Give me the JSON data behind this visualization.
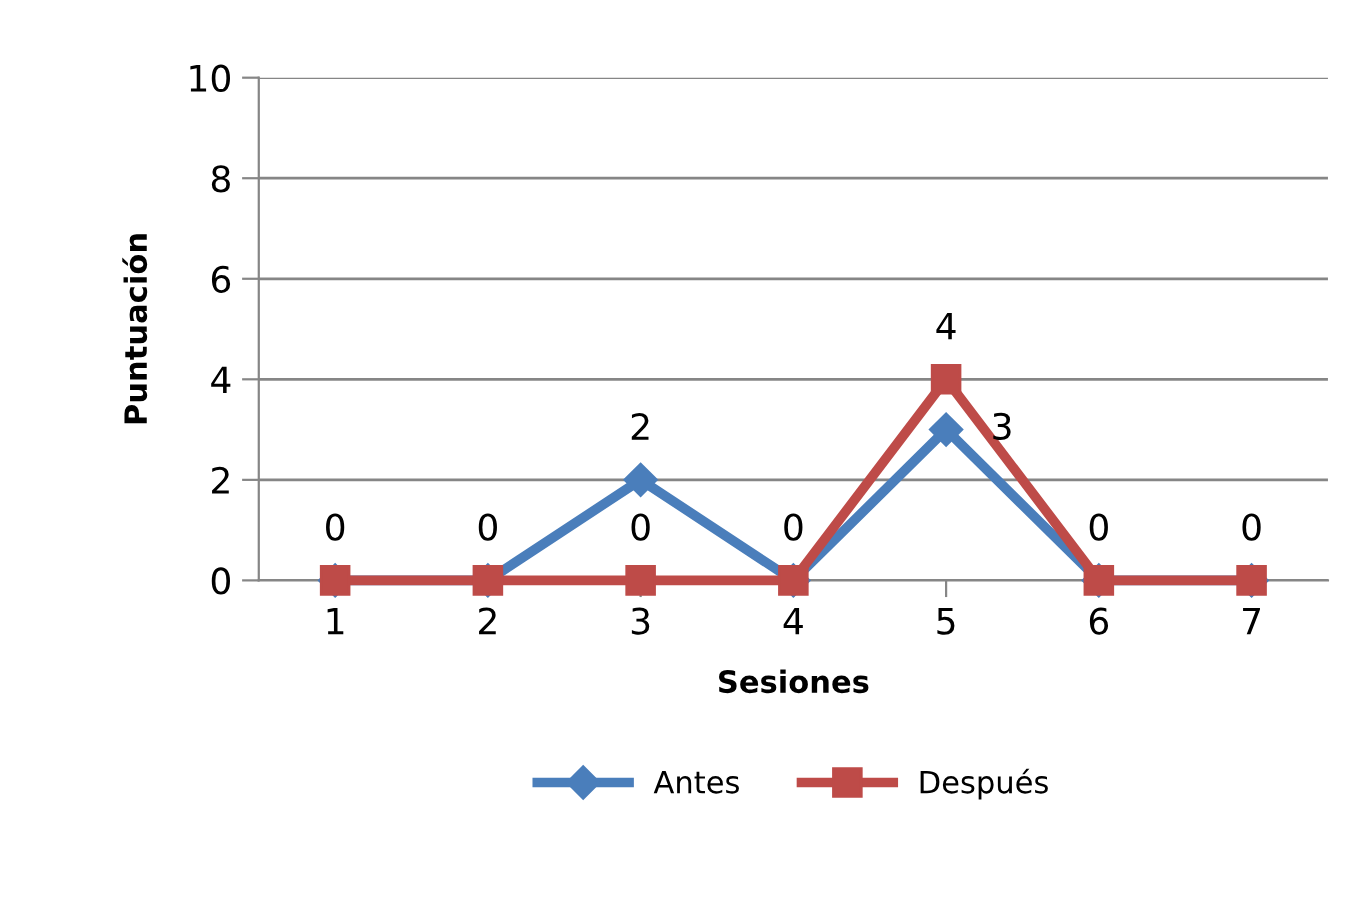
{
  "chart_data": {
    "type": "line",
    "xlabel": "Sesiones",
    "ylabel": "Puntuación",
    "categories": [
      "1",
      "2",
      "3",
      "4",
      "5",
      "6",
      "7"
    ],
    "series": [
      {
        "name": "Antes",
        "color": "#4a7ebb",
        "marker": "diamond",
        "values": [
          0,
          0,
          2,
          0,
          3,
          0,
          0
        ],
        "value_labels": [
          "0",
          "0",
          "2",
          "0",
          "3",
          "0",
          "0"
        ]
      },
      {
        "name": "Después",
        "color": "#be4b48",
        "marker": "square",
        "values": [
          0,
          0,
          0,
          0,
          4,
          0,
          0
        ],
        "value_labels": [
          null,
          null,
          "0",
          null,
          "4",
          null,
          null
        ]
      }
    ],
    "ylim": [
      0,
      10
    ],
    "yticks": [
      0,
      2,
      4,
      6,
      8,
      10
    ],
    "grid": "y",
    "legend": "bottom",
    "line_style": "solid"
  }
}
